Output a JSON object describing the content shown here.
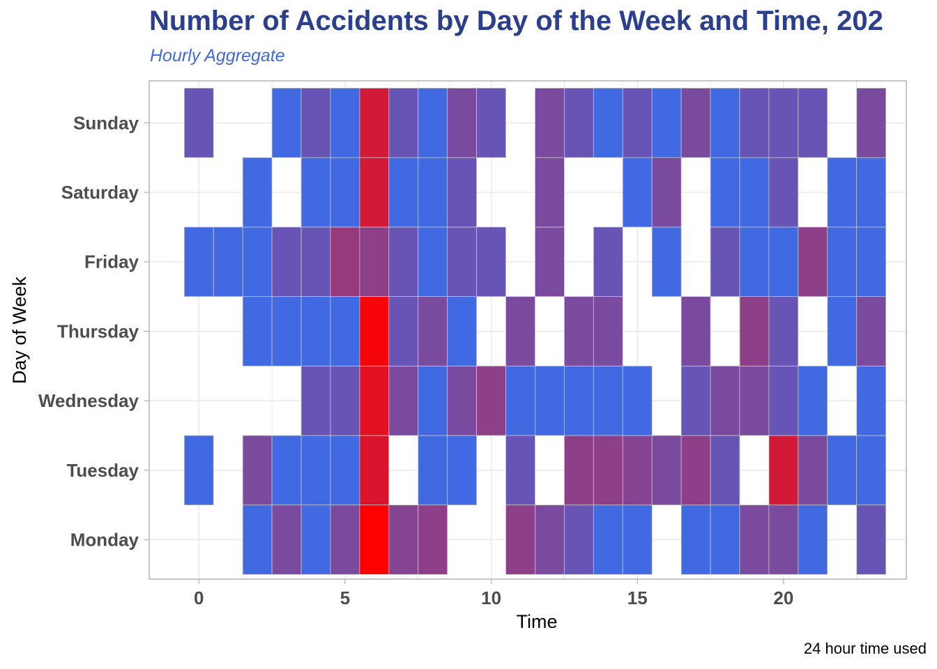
{
  "chart_data": {
    "type": "heatmap",
    "title": "Number of Accidents by Day of the Week and Time, 202",
    "subtitle": "Hourly Aggregate",
    "xlabel": "Time",
    "ylabel": "Day of Week",
    "caption": "24 hour time used",
    "x_ticks": [
      0,
      5,
      10,
      15,
      20
    ],
    "xlim": [
      -1.7,
      24.2
    ],
    "y_categories": [
      "Monday",
      "Tuesday",
      "Wednesday",
      "Thursday",
      "Friday",
      "Saturday",
      "Sunday"
    ],
    "color_low": "#4169e1",
    "color_high": "#ff0000",
    "grid": true,
    "legend": "none",
    "cells": {
      "Sunday": [
        0.2,
        null,
        null,
        0,
        0.2,
        0,
        0.75,
        0.2,
        0,
        0.3,
        0.2,
        null,
        0.3,
        0.2,
        0,
        0.2,
        0,
        0.3,
        0,
        0.2,
        0.2,
        0.2,
        null,
        0.3
      ],
      "Saturday": [
        null,
        null,
        0,
        null,
        0,
        0,
        0.75,
        0,
        0,
        0.2,
        null,
        null,
        0.3,
        null,
        null,
        0,
        0.3,
        null,
        0,
        0,
        0.2,
        null,
        0,
        0
      ],
      "Friday": [
        0,
        0,
        0,
        0.2,
        0.2,
        0.45,
        0.4,
        0.2,
        0,
        0.2,
        0.2,
        null,
        0.3,
        null,
        0.2,
        null,
        0,
        null,
        0.2,
        0,
        0,
        0.4,
        0,
        0
      ],
      "Thursday": [
        null,
        null,
        0,
        0,
        0,
        0,
        0.95,
        0.2,
        0.3,
        0,
        null,
        0.3,
        null,
        0.3,
        0.3,
        null,
        null,
        0.3,
        null,
        0.4,
        0.2,
        null,
        0,
        0.3
      ],
      "Wednesday": [
        null,
        null,
        null,
        null,
        0.2,
        0.2,
        0.85,
        0.3,
        0,
        0.3,
        0.4,
        0,
        0,
        0,
        0,
        0,
        null,
        0.2,
        0.3,
        0.3,
        0.2,
        0,
        null,
        0
      ],
      "Tuesday": [
        0,
        null,
        0.3,
        0,
        0,
        0,
        0.8,
        null,
        0,
        0,
        null,
        0.2,
        null,
        0.4,
        0.4,
        0.35,
        0.3,
        0.4,
        0.2,
        null,
        0.75,
        0.3,
        0,
        0
      ],
      "Monday": [
        null,
        null,
        0,
        0.3,
        0,
        0.3,
        1.0,
        0.35,
        0.4,
        null,
        null,
        0.4,
        0.3,
        0.2,
        0,
        0,
        null,
        0,
        0,
        0.3,
        0.3,
        0,
        null,
        0.2
      ]
    }
  }
}
